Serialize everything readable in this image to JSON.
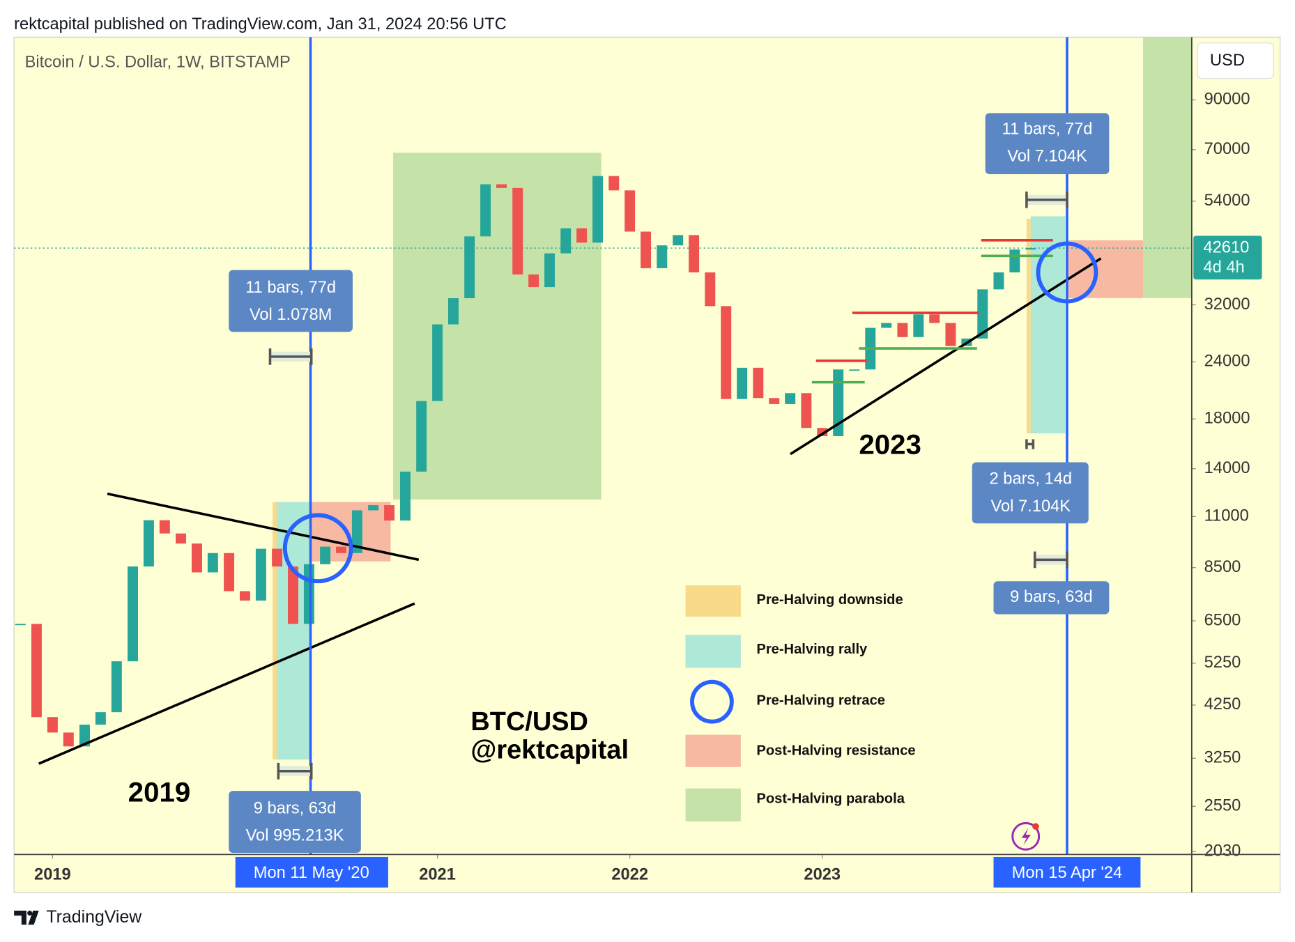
{
  "header": "rektcapital published on TradingView.com, Jan 31, 2024 20:56 UTC",
  "footer": "TradingView",
  "chart_data": {
    "type": "candlestick",
    "title": "Bitcoin / U.S. Dollar, 1W, BITSTAMP",
    "y_axis_label": "USD",
    "x": [
      2018.833,
      2018.917,
      2019,
      2019.083,
      2019.167,
      2019.25,
      2019.333,
      2019.417,
      2019.5,
      2019.583,
      2019.667,
      2019.75,
      2019.833,
      2019.917,
      2020,
      2020.083,
      2020.167,
      2020.25,
      2020.333,
      2020.417,
      2020.5,
      2020.583,
      2020.667,
      2020.75,
      2020.833,
      2020.917,
      2021,
      2021.083,
      2021.167,
      2021.25,
      2021.333,
      2021.417,
      2021.5,
      2021.583,
      2021.667,
      2021.75,
      2021.833,
      2021.917,
      2022,
      2022.083,
      2022.167,
      2022.25,
      2022.333,
      2022.417,
      2022.5,
      2022.583,
      2022.667,
      2022.75,
      2022.833,
      2022.917,
      2023,
      2023.083,
      2023.167,
      2023.25,
      2023.333,
      2023.417,
      2023.5,
      2023.583,
      2023.667,
      2023.75,
      2023.833,
      2023.917,
      2024,
      2024.083
    ],
    "values": [
      6400,
      4000,
      3700,
      3450,
      3850,
      4100,
      5300,
      8550,
      10800,
      10100,
      9600,
      8300,
      9150,
      7550,
      7200,
      9350,
      8550,
      6400,
      8650,
      9450,
      9150,
      11350,
      11650,
      10780,
      13800,
      19700,
      29000,
      33100,
      45200,
      58800,
      57700,
      37300,
      35000,
      41500,
      47100,
      43800,
      61300,
      57000,
      46300,
      38500,
      43200,
      45500,
      37700,
      31800,
      19900,
      23300,
      20000,
      19400,
      20500,
      17200,
      16500,
      23100,
      23100,
      28500,
      29200,
      27200,
      30500,
      29200,
      26000,
      27000,
      34600,
      37700,
      42300,
      42610
    ],
    "up_color": "#26a69a",
    "down_color": "#ef5350",
    "log_scale": true,
    "xlim": [
      2018.8,
      2024.92
    ],
    "ylim": [
      2000,
      123500
    ],
    "xticks": [
      2019,
      2021,
      2022,
      2023
    ],
    "yticks": [
      2030,
      2550,
      3250,
      4250,
      5250,
      6500,
      8500,
      11000,
      14000,
      18000,
      24000,
      32000,
      54000,
      70000,
      90000
    ],
    "last_price": 42610,
    "countdown": "4d 4h",
    "crosshair_labels": [
      "Mon 11 May '20",
      "Mon 15 Apr '24"
    ],
    "measures": [
      {
        "span": "11 bars, 77d",
        "volume": "Vol 1.078M"
      },
      {
        "span": "9 bars, 63d",
        "volume": "Vol 995.213K"
      },
      {
        "span": "11 bars, 77d",
        "volume": "Vol 7.104K"
      },
      {
        "span": "2 bars, 14d",
        "volume": "Vol 7.104K"
      },
      {
        "span": "9 bars, 63d"
      }
    ],
    "annotations": [
      "2019",
      "2023",
      "BTC/USD",
      "@rektcapital"
    ],
    "legend": [
      "Pre-Halving downside",
      "Pre-Halving rally",
      "Pre-Halving retrace",
      "Post-Halving resistance",
      "Post-Halving parabola"
    ]
  }
}
